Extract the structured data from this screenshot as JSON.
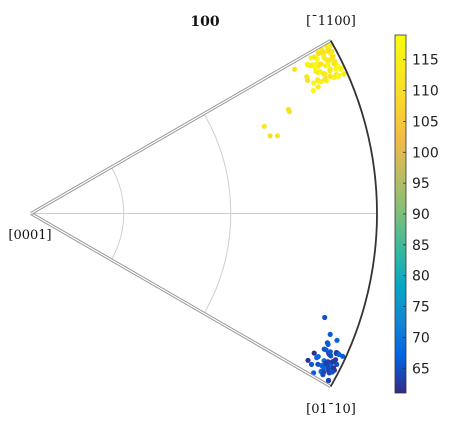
{
  "chart_data": {
    "type": "scatter",
    "subtype": "inverse pole figure (hexagonal fundamental sector)",
    "title": "100",
    "corner_labels": {
      "top": "[¯1100]",
      "center": "[0001]",
      "bottom": "[01¯10]"
    },
    "sector": {
      "angular_extent_deg": [
        -30,
        30
      ],
      "polar_range_deg": [
        0,
        90
      ]
    },
    "grid": {
      "polar_circles_deg": [
        30,
        60
      ],
      "azimuth_lines_deg": [
        0
      ]
    },
    "colorbar": {
      "colormap": "parula",
      "range": [
        61,
        119
      ],
      "ticks": [
        65,
        70,
        75,
        80,
        85,
        90,
        95,
        100,
        105,
        110,
        115
      ]
    },
    "clusters": [
      {
        "name": "",
        "azimuth_deg_range": [
          23.5,
          29.5
        ],
        "polar_deg_range": [
          81.5,
          89.5
        ],
        "value_range": [
          110,
          119
        ],
        "count": 70
      },
      {
        "name": "",
        "points": [
          {
            "azimuth_deg": 17.5,
            "polar_deg": 73.5,
            "value": 112
          },
          {
            "azimuth_deg": 18.0,
            "polar_deg": 72.0,
            "value": 111
          },
          {
            "azimuth_deg": 20.5,
            "polar_deg": 71.5,
            "value": 113
          },
          {
            "azimuth_deg": 21.5,
            "polar_deg": 77.5,
            "value": 112
          },
          {
            "azimuth_deg": 22.0,
            "polar_deg": 77.5,
            "value": 111
          }
        ]
      },
      {
        "name": "",
        "azimuth_deg_range": [
          -29.5,
          -23.5
        ],
        "polar_deg_range": [
          84.0,
          89.5
        ],
        "value_range": [
          61,
          68
        ],
        "count": 45
      },
      {
        "name": "",
        "points": [
          {
            "azimuth_deg": -22.0,
            "polar_deg": 86.0,
            "value": 66
          },
          {
            "azimuth_deg": -22.5,
            "polar_deg": 87.5,
            "value": 67
          },
          {
            "azimuth_deg": -19.5,
            "polar_deg": 84.0,
            "value": 65
          }
        ]
      }
    ]
  }
}
